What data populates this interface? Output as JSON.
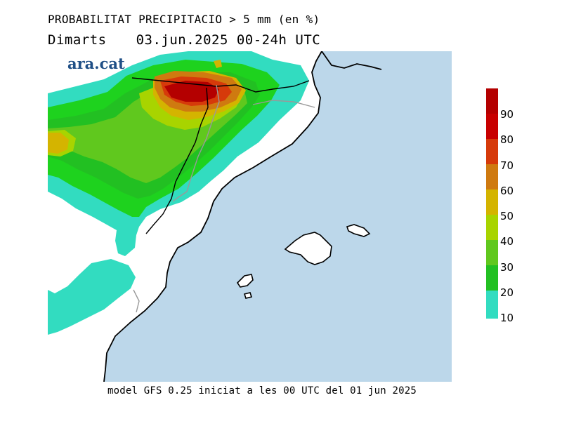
{
  "title": {
    "line1": "PROBABILITAT PRECIPITACIO > 5 mm (en %)",
    "day": "Dimarts",
    "period": "03.jun.2025 00-24h UTC"
  },
  "logo_text": "ara.cat",
  "footer": "model GFS 0.25 iniciat a les 00 UTC del 01 jun 2025",
  "legend": {
    "labels": [
      "90",
      "80",
      "70",
      "60",
      "50",
      "40",
      "30",
      "20",
      "10"
    ],
    "colors": [
      "#c80000",
      "#d63a0a",
      "#cf7a10",
      "#d4b400",
      "#a8d400",
      "#60c81e",
      "#22c022",
      "#1ed21e",
      "#32dcc0"
    ],
    "top_color": "#b40000"
  },
  "map": {
    "sea_color": "#bcd7ea",
    "land_color": "#ffffff",
    "coastline_color": "#000000",
    "border_color": "#999999",
    "shown_region": "Catalonia, eastern Spain and Balearic Islands"
  }
}
